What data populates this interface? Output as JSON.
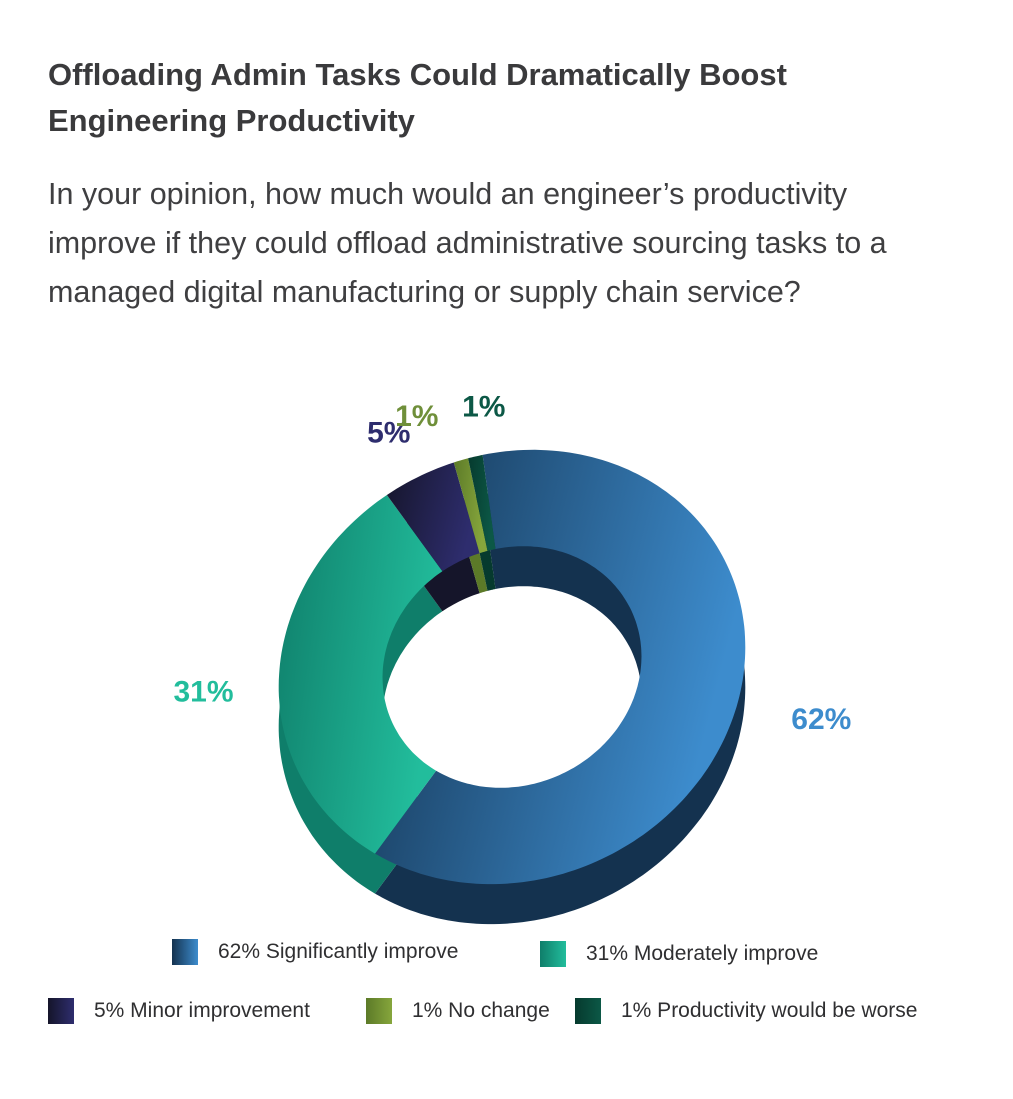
{
  "title": "Offloading Admin Tasks Could Dramatically Boost Engineering Productivity",
  "question": "In your opinion, how much would an engineer’s productivity improve if they could offload administrative sourcing tasks to a managed digital manufacturing or supply chain service?",
  "chart_data": {
    "type": "pie",
    "variant": "3d-donut",
    "slices": [
      {
        "label": "Significantly improve",
        "value": 62,
        "data_label": "62%",
        "legend": "62% Significantly improve",
        "color": "#3d8ccd",
        "color_dark": "#14324f"
      },
      {
        "label": "Moderately improve",
        "value": 31,
        "data_label": "31%",
        "legend": "31% Moderately improve",
        "color": "#22bd9c",
        "color_dark": "#0f7e6a"
      },
      {
        "label": "Minor improvement",
        "value": 5,
        "data_label": "5%",
        "legend": "5% Minor improvement",
        "color": "#2e2d6e",
        "color_dark": "#15152a"
      },
      {
        "label": "No change",
        "value": 1,
        "data_label": "1%",
        "legend": "1% No change",
        "color": "#86a63c",
        "color_dark": "#5c7a28"
      },
      {
        "label": "Productivity would be worse",
        "value": 1,
        "data_label": "1%",
        "legend": "1% Productivity would be worse",
        "color": "#0c5846",
        "color_dark": "#063a2e"
      }
    ],
    "label_colors": [
      "#3d8ccd",
      "#22bd9c",
      "#2e2d6e",
      "#6f8f3a",
      "#0c5846"
    ],
    "legend_placement": "bottom"
  }
}
